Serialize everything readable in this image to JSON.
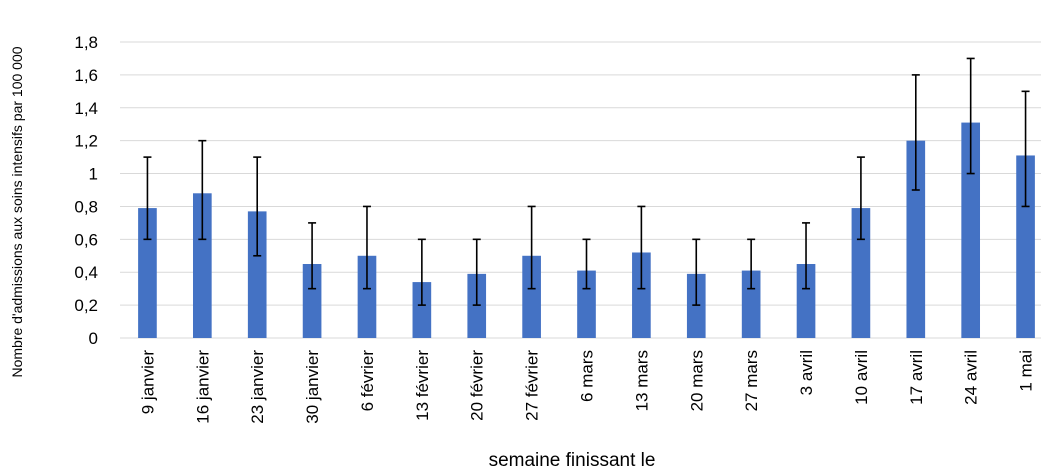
{
  "chart_data": {
    "type": "bar",
    "title": "",
    "xlabel": "semaine finissant le",
    "ylabel": "Nombre d'admissions aux soins intensifs par 100 000",
    "categories": [
      "9 janvier",
      "16 janvier",
      "23 janvier",
      "30 janvier",
      "6 février",
      "13 février",
      "20 février",
      "27 février",
      "6 mars",
      "13 mars",
      "20 mars",
      "27 mars",
      "3 avril",
      "10 avril",
      "17 avril",
      "24 avril",
      "1 mai"
    ],
    "values": [
      0.79,
      0.88,
      0.77,
      0.45,
      0.5,
      0.34,
      0.39,
      0.5,
      0.41,
      0.52,
      0.39,
      0.41,
      0.45,
      0.79,
      1.2,
      1.31,
      1.11
    ],
    "error_low": [
      0.6,
      0.6,
      0.5,
      0.3,
      0.3,
      0.2,
      0.2,
      0.3,
      0.3,
      0.3,
      0.2,
      0.3,
      0.3,
      0.6,
      0.9,
      1.0,
      0.8
    ],
    "error_high": [
      1.1,
      1.2,
      1.1,
      0.7,
      0.8,
      0.6,
      0.6,
      0.8,
      0.6,
      0.8,
      0.6,
      0.6,
      0.7,
      1.1,
      1.6,
      1.7,
      1.5
    ],
    "ylim": [
      0,
      1.8
    ],
    "yticks": [
      0,
      0.2,
      0.4,
      0.6,
      0.8,
      1,
      1.2,
      1.4,
      1.6,
      1.8
    ],
    "ytick_labels": [
      "0",
      "0,2",
      "0,4",
      "0,6",
      "0,8",
      "1",
      "1,2",
      "1,4",
      "1,6",
      "1,8"
    ],
    "grid": true,
    "legend": "none",
    "colors": {
      "bar": "#4472C4",
      "grid": "#D9D9D9",
      "error": "#000000"
    }
  }
}
